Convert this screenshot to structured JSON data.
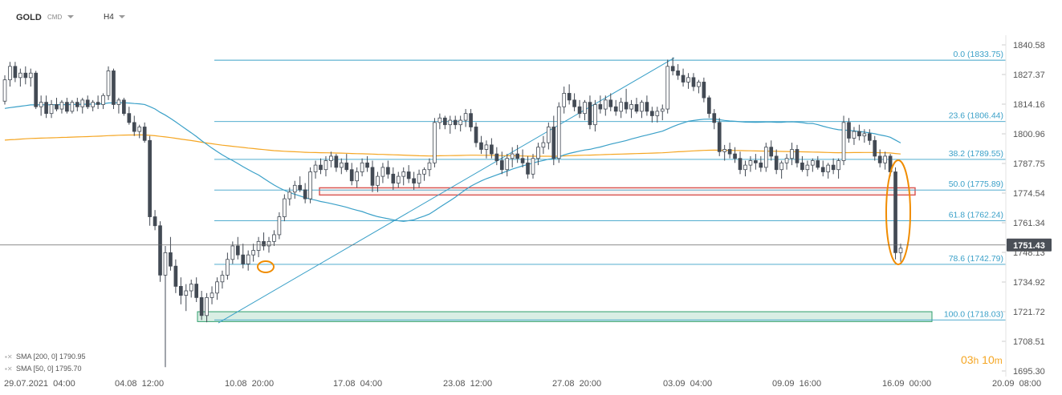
{
  "toolbar": {
    "symbol": "GOLD",
    "market": "CMD",
    "timeframe": "H4"
  },
  "legend": [
    {
      "icon": "eye-close-icon",
      "label": "SMA [200, 0] 1790.95"
    },
    {
      "icon": "eye-close-icon",
      "label": "SMA [50, 0] 1795.70"
    }
  ],
  "countdown": {
    "hours": "03",
    "h_unit": "h",
    "minutes": "10",
    "m_unit": "m"
  },
  "current_price": "1751.43",
  "colors": {
    "up_candle": "#ffffff",
    "down_candle": "#434a54",
    "sma50": "#3aa0c8",
    "sma200": "#f5a623",
    "fib_line": "#3aa0c8",
    "resistance_box": "#d9534f",
    "support_box": "#2e9e6b",
    "highlight_ellipse": "#f08c00"
  },
  "chart_data": {
    "type": "candlestick",
    "y_ticks": [
      "1840.58",
      "1827.37",
      "1814.16",
      "1800.96",
      "1787.75",
      "1774.54",
      "1761.34",
      "1748.13",
      "1734.92",
      "1721.72",
      "1708.51",
      "1695.30"
    ],
    "x_ticks": [
      "29.07.2021  04:00",
      "04.08  12:00",
      "10.08  20:00",
      "17.08  04:00",
      "23.08  12:00",
      "27.08  20:00",
      "03.09  04:00",
      "09.09  16:00",
      "16.09  00:00",
      "20.09  08:00"
    ],
    "ylim": [
      1695.3,
      1840.58
    ],
    "fibonacci": [
      {
        "label": "0.0 (1833.75)",
        "value": 1833.75
      },
      {
        "label": "23.6 (1806.44)",
        "value": 1806.44
      },
      {
        "label": "38.2 (1789.55)",
        "value": 1789.55
      },
      {
        "label": "50.0 (1775.89)",
        "value": 1775.89
      },
      {
        "label": "61.8 (1762.24)",
        "value": 1762.24
      },
      {
        "label": "78.6 (1742.79)",
        "value": 1742.79
      },
      {
        "label": "100.0 (1718.03)",
        "value": 1718.03
      }
    ],
    "zones": [
      {
        "name": "resistance",
        "low": 1773.7,
        "high": 1776.9
      },
      {
        "name": "support",
        "low": 1717.3,
        "high": 1721.7
      }
    ],
    "trendline": {
      "from": 1716.7,
      "to": 1834.8
    },
    "price_line": 1751.43,
    "candles_ohlc": [
      [
        1815.5,
        1827,
        1814,
        1825
      ],
      [
        1825,
        1833,
        1822,
        1831
      ],
      [
        1831,
        1833,
        1824,
        1826
      ],
      [
        1826,
        1830,
        1822,
        1828
      ],
      [
        1828,
        1831,
        1823,
        1826
      ],
      [
        1826,
        1830,
        1822,
        1828
      ],
      [
        1828,
        1829,
        1812,
        1813
      ],
      [
        1813,
        1818,
        1809,
        1815
      ],
      [
        1815,
        1818,
        1808,
        1810
      ],
      [
        1810,
        1816,
        1808,
        1814
      ],
      [
        1814,
        1817,
        1811,
        1812
      ],
      [
        1812,
        1816,
        1810,
        1815
      ],
      [
        1815,
        1817,
        1810,
        1811
      ],
      [
        1811,
        1816,
        1810,
        1815
      ],
      [
        1815,
        1817,
        1811,
        1813
      ],
      [
        1813,
        1817,
        1810,
        1816
      ],
      [
        1816,
        1818,
        1812,
        1813
      ],
      [
        1813,
        1816,
        1811,
        1815
      ],
      [
        1815,
        1818,
        1812,
        1814
      ],
      [
        1814,
        1819,
        1812,
        1818
      ],
      [
        1818,
        1831,
        1816,
        1829
      ],
      [
        1829,
        1830,
        1812,
        1814
      ],
      [
        1814,
        1817,
        1810,
        1816
      ],
      [
        1816,
        1817,
        1809,
        1810
      ],
      [
        1810,
        1813,
        1805,
        1806
      ],
      [
        1806,
        1809,
        1800,
        1802
      ],
      [
        1802,
        1805,
        1799,
        1804
      ],
      [
        1804,
        1806,
        1797,
        1798
      ],
      [
        1798,
        1800,
        1760,
        1764
      ],
      [
        1764,
        1767,
        1758,
        1760
      ],
      [
        1760,
        1762,
        1735,
        1738
      ],
      [
        1738,
        1751,
        1697,
        1748
      ],
      [
        1748,
        1755,
        1740,
        1742
      ],
      [
        1742,
        1745,
        1730,
        1733
      ],
      [
        1733,
        1737,
        1725,
        1729
      ],
      [
        1729,
        1734,
        1722,
        1731
      ],
      [
        1731,
        1736,
        1728,
        1734
      ],
      [
        1734,
        1737,
        1726,
        1728
      ],
      [
        1728,
        1731,
        1718,
        1720
      ],
      [
        1720,
        1730,
        1717,
        1728
      ],
      [
        1728,
        1733,
        1725,
        1730
      ],
      [
        1730,
        1737,
        1727,
        1735
      ],
      [
        1735,
        1740,
        1732,
        1738
      ],
      [
        1738,
        1748,
        1736,
        1745
      ],
      [
        1745,
        1753,
        1743,
        1751
      ],
      [
        1751,
        1755,
        1745,
        1747
      ],
      [
        1747,
        1752,
        1741,
        1743
      ],
      [
        1743,
        1749,
        1740,
        1747
      ],
      [
        1747,
        1752,
        1744,
        1749
      ],
      [
        1749,
        1755,
        1746,
        1753
      ],
      [
        1753,
        1757,
        1749,
        1751
      ],
      [
        1751,
        1755,
        1748,
        1753
      ],
      [
        1753,
        1758,
        1751,
        1756
      ],
      [
        1756,
        1766,
        1754,
        1764
      ],
      [
        1764,
        1774,
        1762,
        1772
      ],
      [
        1772,
        1777,
        1769,
        1775
      ],
      [
        1775,
        1780,
        1772,
        1778
      ],
      [
        1778,
        1782,
        1775,
        1776
      ],
      [
        1776,
        1779,
        1770,
        1772
      ],
      [
        1772,
        1786,
        1770,
        1784
      ],
      [
        1784,
        1789,
        1781,
        1787
      ],
      [
        1787,
        1790,
        1783,
        1785
      ],
      [
        1785,
        1791,
        1782,
        1789
      ],
      [
        1789,
        1793,
        1786,
        1791
      ],
      [
        1791,
        1792,
        1784,
        1786
      ],
      [
        1786,
        1790,
        1783,
        1788
      ],
      [
        1788,
        1792,
        1784,
        1785
      ],
      [
        1785,
        1788,
        1778,
        1780
      ],
      [
        1780,
        1786,
        1777,
        1784
      ],
      [
        1784,
        1790,
        1782,
        1788
      ],
      [
        1788,
        1791,
        1784,
        1786
      ],
      [
        1786,
        1789,
        1775,
        1778
      ],
      [
        1778,
        1784,
        1775,
        1782
      ],
      [
        1782,
        1788,
        1779,
        1786
      ],
      [
        1786,
        1789,
        1781,
        1783
      ],
      [
        1783,
        1786,
        1776,
        1779
      ],
      [
        1779,
        1784,
        1777,
        1782
      ],
      [
        1782,
        1786,
        1778,
        1784
      ],
      [
        1784,
        1787,
        1779,
        1781
      ],
      [
        1781,
        1784,
        1776,
        1779
      ],
      [
        1779,
        1785,
        1777,
        1783
      ],
      [
        1783,
        1786,
        1780,
        1785
      ],
      [
        1785,
        1790,
        1782,
        1788
      ],
      [
        1788,
        1808,
        1786,
        1806
      ],
      [
        1806,
        1810,
        1803,
        1808
      ],
      [
        1808,
        1809,
        1803,
        1805
      ],
      [
        1805,
        1809,
        1801,
        1807
      ],
      [
        1807,
        1809,
        1803,
        1805
      ],
      [
        1805,
        1809,
        1802,
        1807
      ],
      [
        1807,
        1812,
        1804,
        1810
      ],
      [
        1810,
        1812,
        1802,
        1804
      ],
      [
        1804,
        1806,
        1795,
        1797
      ],
      [
        1797,
        1800,
        1792,
        1794
      ],
      [
        1794,
        1798,
        1790,
        1796
      ],
      [
        1796,
        1799,
        1790,
        1792
      ],
      [
        1792,
        1795,
        1787,
        1789
      ],
      [
        1789,
        1793,
        1783,
        1785
      ],
      [
        1785,
        1792,
        1782,
        1790
      ],
      [
        1790,
        1795,
        1786,
        1792
      ],
      [
        1792,
        1796,
        1788,
        1790
      ],
      [
        1790,
        1794,
        1786,
        1788
      ],
      [
        1788,
        1791,
        1781,
        1783
      ],
      [
        1783,
        1792,
        1781,
        1790
      ],
      [
        1790,
        1797,
        1787,
        1795
      ],
      [
        1795,
        1800,
        1792,
        1797
      ],
      [
        1797,
        1806,
        1794,
        1804
      ],
      [
        1804,
        1809,
        1787,
        1790
      ],
      [
        1790,
        1815,
        1788,
        1813
      ],
      [
        1813,
        1822,
        1810,
        1819
      ],
      [
        1819,
        1823,
        1814,
        1816
      ],
      [
        1816,
        1819,
        1811,
        1813
      ],
      [
        1813,
        1816,
        1808,
        1810
      ],
      [
        1810,
        1816,
        1807,
        1815
      ],
      [
        1815,
        1818,
        1803,
        1805
      ],
      [
        1805,
        1816,
        1802,
        1814
      ],
      [
        1814,
        1818,
        1810,
        1812
      ],
      [
        1812,
        1818,
        1809,
        1816
      ],
      [
        1816,
        1819,
        1811,
        1813
      ],
      [
        1813,
        1816,
        1809,
        1811
      ],
      [
        1811,
        1817,
        1808,
        1815
      ],
      [
        1815,
        1821,
        1810,
        1812
      ],
      [
        1812,
        1816,
        1808,
        1814
      ],
      [
        1814,
        1817,
        1810,
        1811
      ],
      [
        1811,
        1816,
        1808,
        1815
      ],
      [
        1815,
        1818,
        1809,
        1811
      ],
      [
        1811,
        1813,
        1806,
        1809
      ],
      [
        1809,
        1813,
        1806,
        1811
      ],
      [
        1811,
        1814,
        1807,
        1812
      ],
      [
        1812,
        1834,
        1810,
        1831
      ],
      [
        1831,
        1835,
        1827,
        1829
      ],
      [
        1829,
        1832,
        1825,
        1827
      ],
      [
        1827,
        1830,
        1822,
        1824
      ],
      [
        1824,
        1828,
        1821,
        1826
      ],
      [
        1826,
        1828,
        1820,
        1822
      ],
      [
        1822,
        1825,
        1819,
        1824
      ],
      [
        1824,
        1826,
        1815,
        1817
      ],
      [
        1817,
        1818,
        1808,
        1810
      ],
      [
        1810,
        1812,
        1803,
        1806
      ],
      [
        1806,
        1808,
        1791,
        1793
      ],
      [
        1793,
        1796,
        1789,
        1794
      ],
      [
        1794,
        1797,
        1790,
        1792
      ],
      [
        1792,
        1795,
        1788,
        1790
      ],
      [
        1790,
        1793,
        1783,
        1785
      ],
      [
        1785,
        1789,
        1782,
        1787
      ],
      [
        1787,
        1791,
        1784,
        1789
      ],
      [
        1789,
        1792,
        1785,
        1788
      ],
      [
        1788,
        1791,
        1784,
        1786
      ],
      [
        1786,
        1797,
        1784,
        1795
      ],
      [
        1795,
        1798,
        1789,
        1791
      ],
      [
        1791,
        1794,
        1783,
        1785
      ],
      [
        1785,
        1789,
        1781,
        1788
      ],
      [
        1788,
        1792,
        1785,
        1790
      ],
      [
        1790,
        1797,
        1787,
        1794
      ],
      [
        1794,
        1796,
        1786,
        1788
      ],
      [
        1788,
        1791,
        1784,
        1785
      ],
      [
        1785,
        1789,
        1782,
        1787
      ],
      [
        1787,
        1790,
        1784,
        1789
      ],
      [
        1789,
        1791,
        1785,
        1786
      ],
      [
        1786,
        1789,
        1782,
        1784
      ],
      [
        1784,
        1788,
        1781,
        1787
      ],
      [
        1787,
        1790,
        1783,
        1785
      ],
      [
        1785,
        1790,
        1781,
        1789
      ],
      [
        1789,
        1809,
        1787,
        1806
      ],
      [
        1806,
        1808,
        1797,
        1799
      ],
      [
        1799,
        1804,
        1796,
        1802
      ],
      [
        1802,
        1805,
        1798,
        1800
      ],
      [
        1800,
        1803,
        1797,
        1801
      ],
      [
        1801,
        1803,
        1796,
        1798
      ],
      [
        1798,
        1800,
        1789,
        1791
      ],
      [
        1791,
        1794,
        1786,
        1788
      ],
      [
        1788,
        1793,
        1785,
        1791
      ],
      [
        1791,
        1792,
        1782,
        1784
      ],
      [
        1784,
        1786,
        1745,
        1748
      ],
      [
        1748,
        1752,
        1744,
        1750
      ]
    ]
  }
}
